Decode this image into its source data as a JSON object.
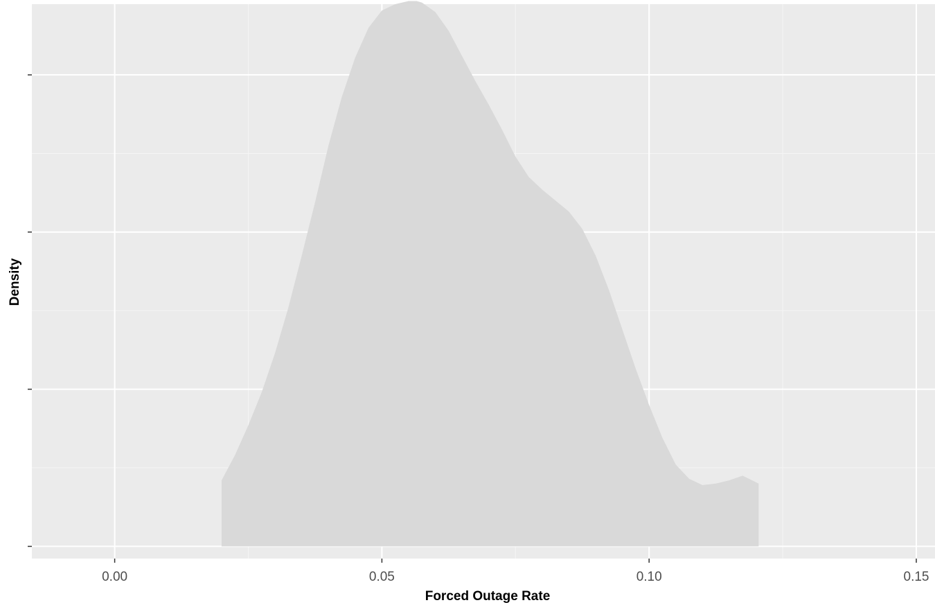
{
  "chart_data": {
    "type": "area",
    "chart_kind": "density",
    "title": "",
    "xlabel": "Forced Outage Rate",
    "ylabel": "Density",
    "xlim": [
      -0.0155,
      0.1535
    ],
    "ylim": [
      -0.0775,
      3.45
    ],
    "x_ticks": [
      0.0,
      0.05,
      0.1,
      0.15
    ],
    "x_tick_labels": [
      "0.00",
      "0.05",
      "0.10",
      "0.15"
    ],
    "y_ticks": [
      0,
      1,
      2,
      3
    ],
    "y_tick_labels": [
      "",
      "",
      "",
      ""
    ],
    "grid": true,
    "legend": "none",
    "series": [
      {
        "x": [
          0.02,
          0.0225,
          0.025,
          0.0275,
          0.03,
          0.0325,
          0.035,
          0.0375,
          0.04,
          0.0425,
          0.045,
          0.0475,
          0.05,
          0.0525,
          0.055,
          0.0565,
          0.0575,
          0.06,
          0.0625,
          0.065,
          0.0675,
          0.07,
          0.0725,
          0.075,
          0.0775,
          0.08,
          0.0825,
          0.085,
          0.0875,
          0.09,
          0.0925,
          0.095,
          0.0975,
          0.1,
          0.1025,
          0.105,
          0.1075,
          0.11,
          0.1125,
          0.115,
          0.1175,
          0.1205
        ],
        "y": [
          0.42,
          0.58,
          0.77,
          0.98,
          1.23,
          1.52,
          1.85,
          2.19,
          2.55,
          2.86,
          3.11,
          3.3,
          3.41,
          3.45,
          3.47,
          3.47,
          3.46,
          3.4,
          3.28,
          3.12,
          2.96,
          2.81,
          2.65,
          2.48,
          2.35,
          2.27,
          2.2,
          2.13,
          2.02,
          1.85,
          1.63,
          1.38,
          1.13,
          0.9,
          0.69,
          0.52,
          0.43,
          0.39,
          0.4,
          0.42,
          0.45,
          0.4
        ]
      }
    ],
    "colors": {
      "panel_background": "#ebebeb",
      "grid_major": "#ffffff",
      "grid_minor": "#f5f5f5",
      "fill": "#d9d9d9",
      "tick": "#333333",
      "tick_label": "#4d4d4d",
      "axis_title": "#000000"
    }
  }
}
